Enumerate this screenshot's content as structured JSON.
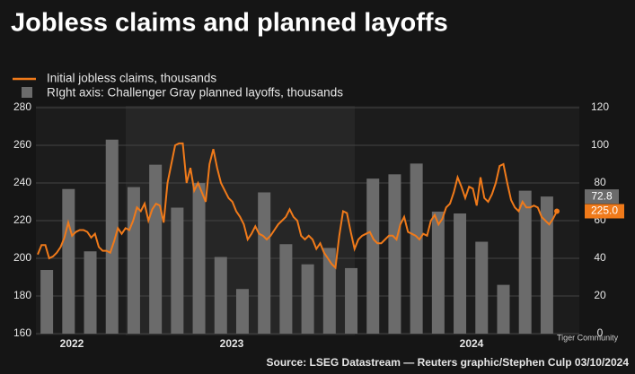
{
  "chart_data": {
    "type": "combo",
    "title": "Jobless claims and planned layoffs",
    "source": "Source: LSEG Datastream — Reuters graphic/Stephen Culp 03/10/2024",
    "watermark": "Tiger Community",
    "x_axis_labels": [
      "2022",
      "2023",
      "2024"
    ],
    "ylim": [
      160,
      280
    ],
    "yticks": [
      160,
      180,
      200,
      220,
      240,
      260,
      280
    ],
    "y2lim": [
      0,
      120
    ],
    "y2ticks": [
      0,
      20,
      40,
      60,
      80,
      100,
      120
    ],
    "grid": true,
    "series": [
      {
        "name": "Initial jobless claims, thousands",
        "color": "#f07a1a",
        "kind": "line",
        "values": [
          202,
          207,
          207,
          200,
          201,
          203,
          206,
          211,
          219,
          212,
          214,
          215,
          215,
          214,
          211,
          213,
          206,
          204,
          204,
          203,
          209,
          216,
          213,
          216,
          215,
          220,
          227,
          225,
          229,
          220,
          226,
          229,
          228,
          219,
          240,
          250,
          260,
          261,
          261,
          240,
          248,
          236,
          240,
          235,
          230,
          250,
          258,
          248,
          240,
          236,
          232,
          230,
          225,
          222,
          218,
          210,
          213,
          217,
          213,
          212,
          210,
          212,
          215,
          218,
          220,
          222,
          226,
          222,
          220,
          212,
          210,
          212,
          210,
          205,
          208,
          203,
          200,
          197,
          195,
          212,
          225,
          224,
          214,
          205,
          210,
          212,
          213,
          214,
          210,
          208,
          208,
          210,
          212,
          212,
          210,
          218,
          222,
          214,
          213,
          212,
          210,
          213,
          212,
          220,
          223,
          218,
          221,
          227,
          229,
          235,
          243,
          238,
          232,
          238,
          237,
          228,
          243,
          232,
          230,
          234,
          240,
          249,
          250,
          240,
          231,
          227,
          225,
          230,
          227,
          227,
          228,
          227,
          222,
          220,
          218,
          221,
          225
        ],
        "last_label": "225.0"
      },
      {
        "name": "RIght axis: Challenger Gray planned layoffs, thousands",
        "color": "#6b6b6b",
        "kind": "bar",
        "axis": "y2",
        "values": [
          33.8,
          76.8,
          43.7,
          103,
          77.8,
          89.7,
          66.9,
          80,
          40.7,
          23.7,
          75,
          47.5,
          36.8,
          45.5,
          34.8,
          82.3,
          84.6,
          90.3,
          64.8,
          63.8,
          48.8,
          25.9,
          75.9,
          72.8
        ],
        "last_label": "72.8"
      }
    ]
  }
}
